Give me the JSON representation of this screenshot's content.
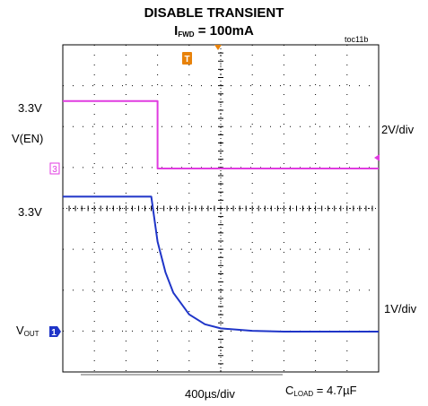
{
  "title": "DISABLE TRANSIENT",
  "subtitle": {
    "main": "I",
    "sub": "FWD",
    "rest": " = 100mA"
  },
  "figure_id": "toc11b",
  "labels": {
    "ch3_level": "3.3V",
    "ch3_name": "V(EN)",
    "ch3_scale": "2V/div",
    "ch1_level": "3.3V",
    "ch1_name": {
      "main": "V",
      "sub": "OUT"
    },
    "ch1_scale": "1V/div",
    "time_scale": "400µs/div",
    "cload": {
      "main": "C",
      "sub": "LOAD",
      "rest": " = 4.7µF"
    }
  },
  "markers": {
    "trigger": "T",
    "ch3": "3",
    "ch1": "1"
  },
  "colors": {
    "en_trace": "#e03be0",
    "vout_trace": "#1f35c8",
    "trigger": "#e8820a",
    "grid": "#000000"
  },
  "chart_data": {
    "type": "line",
    "title": "DISABLE TRANSIENT",
    "xlabel": "400µs/div",
    "grid": true,
    "x_divisions": 10,
    "y_divisions": 8,
    "x_unit": "µs",
    "x": [
      0,
      400,
      800,
      1120,
      1200,
      1300,
      1400,
      1600,
      1800,
      2000,
      2400,
      2800,
      3200,
      3600,
      4000
    ],
    "series": [
      {
        "name": "V(EN)",
        "volts_per_div": 2,
        "values": [
          3.3,
          3.3,
          3.3,
          3.3,
          0,
          0,
          0,
          0,
          0,
          0,
          0,
          0,
          0,
          0,
          0
        ]
      },
      {
        "name": "VOUT",
        "volts_per_div": 1,
        "values": [
          3.3,
          3.3,
          3.3,
          3.3,
          2.2,
          1.45,
          0.95,
          0.42,
          0.18,
          0.08,
          0.02,
          0,
          0,
          0,
          0
        ]
      }
    ]
  }
}
